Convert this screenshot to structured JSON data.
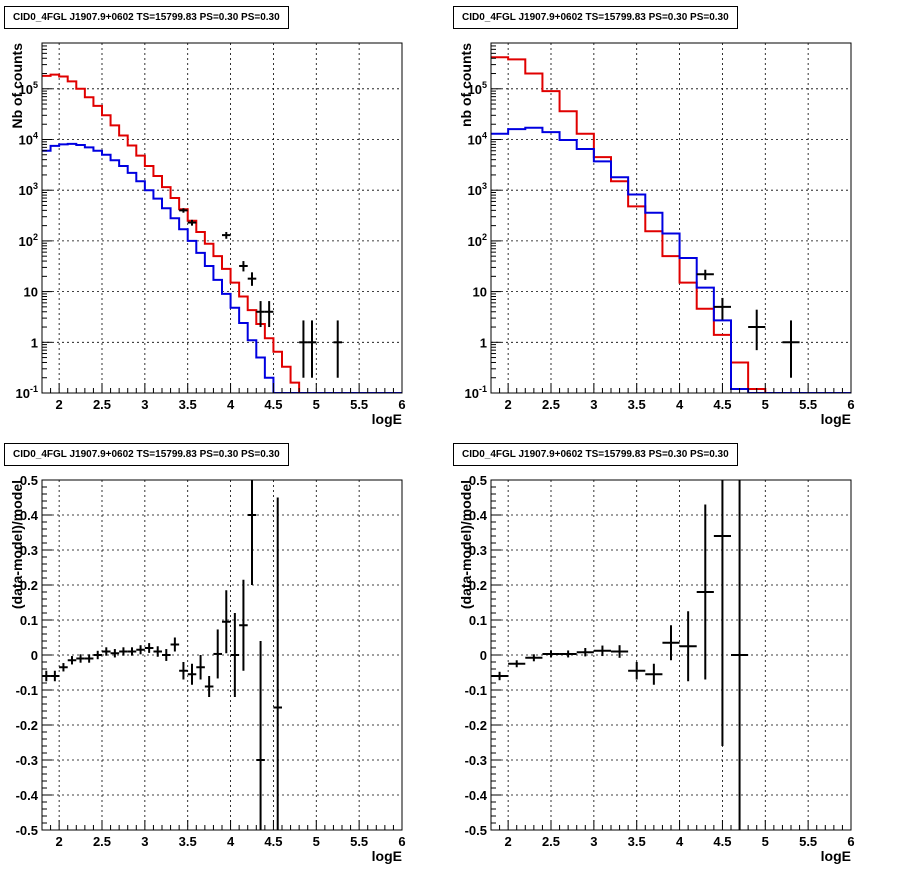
{
  "colors": {
    "model_total": "#e00000",
    "model_component": "#0000e0",
    "data": "#000000",
    "grid": "#000000"
  },
  "chart_data": [
    {
      "type": "line",
      "title": "CID0_4FGL J1907.9+0602 TS=15799.83 PS=0.30 PS=0.30",
      "xlabel": "logE",
      "ylabel": "Nb of counts",
      "xlim": [
        1.8,
        6.0
      ],
      "ylim": [
        0.1,
        800000
      ],
      "yscale": "log",
      "x_ticks": [
        "2",
        "2.5",
        "3",
        "3.5",
        "4",
        "4.5",
        "5",
        "5.5",
        "6"
      ],
      "y_ticks": [
        "10^-1",
        "1",
        "10",
        "10^2",
        "10^3",
        "10^4",
        "10^5"
      ],
      "grid": true,
      "x_edges": [
        1.8,
        1.9,
        2.0,
        2.1,
        2.2,
        2.3,
        2.4,
        2.5,
        2.6,
        2.7,
        2.8,
        2.9,
        3.0,
        3.1,
        3.2,
        3.3,
        3.4,
        3.5,
        3.6,
        3.7,
        3.8,
        3.9,
        4.0,
        4.1,
        4.2,
        4.3,
        4.4,
        4.5,
        4.6,
        4.7,
        4.8,
        4.9,
        5.0,
        5.1,
        5.2,
        5.3,
        5.4,
        5.5,
        5.6,
        5.7,
        5.8,
        5.9,
        6.0
      ],
      "series": [
        {
          "values": [
            180000,
            190000,
            175000,
            140000,
            100000,
            68000,
            46000,
            30000,
            19000,
            12000,
            7600,
            4800,
            3000,
            1900,
            1150,
            700,
            420,
            250,
            150,
            88,
            50,
            28,
            15,
            8,
            4.3,
            2.3,
            1.2,
            0.65,
            0.33,
            0.16,
            0.1,
            0.1,
            0.1,
            0.1,
            0.1,
            0.1,
            0.1,
            0.1,
            0.1,
            0.1,
            0.1,
            0.1
          ],
          "style": "red-step"
        },
        {
          "values": [
            6000,
            7500,
            8000,
            8200,
            7800,
            7000,
            6000,
            5000,
            3900,
            3000,
            2200,
            1500,
            1000,
            680,
            440,
            280,
            170,
            100,
            58,
            32,
            17,
            9,
            4.8,
            2.4,
            1.1,
            0.5,
            0.2,
            0.1,
            0.1,
            0.1,
            0.1,
            0.1,
            0.1,
            0.1,
            0.1,
            0.1,
            0.1,
            0.1,
            0.1,
            0.1,
            0.1,
            0.1
          ],
          "style": "blue-step"
        }
      ],
      "data_points": [
        {
          "x": 3.45,
          "y": 400,
          "ylo": 360,
          "yhi": 440
        },
        {
          "x": 3.55,
          "y": 230,
          "ylo": 200,
          "yhi": 260
        },
        {
          "x": 3.95,
          "y": 130,
          "ylo": 110,
          "yhi": 150
        },
        {
          "x": 4.15,
          "y": 32,
          "ylo": 25,
          "yhi": 40
        },
        {
          "x": 4.25,
          "y": 18,
          "ylo": 13,
          "yhi": 24
        },
        {
          "x": 4.35,
          "y": 4,
          "ylo": 2,
          "yhi": 6.5
        },
        {
          "x": 4.45,
          "y": 4,
          "ylo": 2,
          "yhi": 6.5
        },
        {
          "x": 4.85,
          "y": 1,
          "ylo": 0.2,
          "yhi": 2.7
        },
        {
          "x": 4.95,
          "y": 1,
          "ylo": 0.2,
          "yhi": 2.7
        },
        {
          "x": 5.25,
          "y": 1,
          "ylo": 0.2,
          "yhi": 2.7
        }
      ]
    },
    {
      "type": "line",
      "title": "CID0_4FGL J1907.9+0602 TS=15799.83 PS=0.30 PS=0.30",
      "xlabel": "logE",
      "ylabel": "nb of counts",
      "xlim": [
        1.8,
        6.0
      ],
      "ylim": [
        0.1,
        800000
      ],
      "yscale": "log",
      "x_ticks": [
        "2",
        "2.5",
        "3",
        "3.5",
        "4",
        "4.5",
        "5",
        "5.5",
        "6"
      ],
      "y_ticks": [
        "10^-1",
        "1",
        "10",
        "10^2",
        "10^3",
        "10^4",
        "10^5"
      ],
      "grid": true,
      "x_edges": [
        1.8,
        2.0,
        2.2,
        2.4,
        2.6,
        2.8,
        3.0,
        3.2,
        3.4,
        3.6,
        3.8,
        4.0,
        4.2,
        4.4,
        4.6,
        4.8,
        5.0,
        5.2,
        5.4,
        5.6,
        5.8,
        6.0
      ],
      "series": [
        {
          "values": [
            420000,
            380000,
            200000,
            90000,
            36000,
            13000,
            4500,
            1500,
            480,
            155,
            50,
            15,
            4.6,
            1.4,
            0.4,
            0.12,
            0.1,
            0.1,
            0.1,
            0.1,
            0.1
          ],
          "style": "red-step"
        },
        {
          "values": [
            13000,
            16000,
            17000,
            14000,
            9800,
            6500,
            3700,
            1800,
            820,
            360,
            140,
            46,
            12,
            2.7,
            0.12,
            0.1,
            0.1,
            0.1,
            0.1,
            0.1,
            0.1
          ],
          "style": "blue-step"
        }
      ],
      "data_points": [
        {
          "x": 4.3,
          "y": 22,
          "ylo": 17,
          "yhi": 27
        },
        {
          "x": 4.5,
          "y": 5,
          "ylo": 2.8,
          "yhi": 7.5
        },
        {
          "x": 4.9,
          "y": 2,
          "ylo": 0.7,
          "yhi": 4.4
        },
        {
          "x": 5.3,
          "y": 1,
          "ylo": 0.2,
          "yhi": 2.7
        }
      ]
    },
    {
      "type": "scatter",
      "title": "CID0_4FGL J1907.9+0602 TS=15799.83 PS=0.30 PS=0.30",
      "xlabel": "logE",
      "ylabel": "(data-model)/model",
      "xlim": [
        1.8,
        6.0
      ],
      "ylim": [
        -0.5,
        0.5
      ],
      "x_ticks": [
        "2",
        "2.5",
        "3",
        "3.5",
        "4",
        "4.5",
        "5",
        "5.5",
        "6"
      ],
      "y_ticks": [
        "-0.5",
        "-0.4",
        "-0.3",
        "-0.2",
        "-0.1",
        "0",
        "0.1",
        "0.2",
        "0.3",
        "0.4",
        "0.5"
      ],
      "grid": true,
      "xerr": 0.05,
      "points": [
        {
          "x": 1.85,
          "y": -0.06,
          "err": 0.015
        },
        {
          "x": 1.95,
          "y": -0.06,
          "err": 0.015
        },
        {
          "x": 2.05,
          "y": -0.035,
          "err": 0.012
        },
        {
          "x": 2.15,
          "y": -0.015,
          "err": 0.012
        },
        {
          "x": 2.25,
          "y": -0.01,
          "err": 0.012
        },
        {
          "x": 2.35,
          "y": -0.01,
          "err": 0.012
        },
        {
          "x": 2.45,
          "y": 0.0,
          "err": 0.012
        },
        {
          "x": 2.55,
          "y": 0.01,
          "err": 0.012
        },
        {
          "x": 2.65,
          "y": 0.005,
          "err": 0.012
        },
        {
          "x": 2.75,
          "y": 0.01,
          "err": 0.012
        },
        {
          "x": 2.85,
          "y": 0.01,
          "err": 0.012
        },
        {
          "x": 2.95,
          "y": 0.015,
          "err": 0.013
        },
        {
          "x": 3.05,
          "y": 0.02,
          "err": 0.014
        },
        {
          "x": 3.15,
          "y": 0.01,
          "err": 0.015
        },
        {
          "x": 3.25,
          "y": 0.0,
          "err": 0.017
        },
        {
          "x": 3.35,
          "y": 0.03,
          "err": 0.02
        },
        {
          "x": 3.45,
          "y": -0.045,
          "err": 0.025
        },
        {
          "x": 3.55,
          "y": -0.055,
          "err": 0.03
        },
        {
          "x": 3.65,
          "y": -0.035,
          "err": 0.035
        },
        {
          "x": 3.75,
          "y": -0.09,
          "err": 0.03
        },
        {
          "x": 3.85,
          "y": 0.003,
          "err": 0.07
        },
        {
          "x": 3.95,
          "y": 0.095,
          "err": 0.09
        },
        {
          "x": 4.05,
          "y": 0.0,
          "err": 0.12
        },
        {
          "x": 4.15,
          "y": 0.085,
          "err": 0.13
        },
        {
          "x": 4.25,
          "y": 0.4,
          "err": 0.2
        },
        {
          "x": 4.35,
          "y": -0.3,
          "err": 0.34
        },
        {
          "x": 4.55,
          "y": -0.15,
          "err": 0.6
        }
      ]
    },
    {
      "type": "scatter",
      "title": "CID0_4FGL J1907.9+0602 TS=15799.83 PS=0.30 PS=0.30",
      "xlabel": "logE",
      "ylabel": "(data-model)/model",
      "xlim": [
        1.8,
        6.0
      ],
      "ylim": [
        -0.5,
        0.5
      ],
      "x_ticks": [
        "2",
        "2.5",
        "3",
        "3.5",
        "4",
        "4.5",
        "5",
        "5.5",
        "6"
      ],
      "y_ticks": [
        "-0.5",
        "-0.4",
        "-0.3",
        "-0.2",
        "-0.1",
        "0",
        "0.1",
        "0.2",
        "0.3",
        "0.4",
        "0.5"
      ],
      "grid": true,
      "xerr": 0.1,
      "points": [
        {
          "x": 1.9,
          "y": -0.06,
          "err": 0.012
        },
        {
          "x": 2.1,
          "y": -0.025,
          "err": 0.01
        },
        {
          "x": 2.3,
          "y": -0.008,
          "err": 0.01
        },
        {
          "x": 2.5,
          "y": 0.003,
          "err": 0.01
        },
        {
          "x": 2.7,
          "y": 0.003,
          "err": 0.01
        },
        {
          "x": 2.9,
          "y": 0.008,
          "err": 0.012
        },
        {
          "x": 3.1,
          "y": 0.012,
          "err": 0.015
        },
        {
          "x": 3.3,
          "y": 0.01,
          "err": 0.018
        },
        {
          "x": 3.5,
          "y": -0.045,
          "err": 0.025
        },
        {
          "x": 3.7,
          "y": -0.055,
          "err": 0.03
        },
        {
          "x": 3.9,
          "y": 0.035,
          "err": 0.05
        },
        {
          "x": 4.1,
          "y": 0.025,
          "err": 0.1
        },
        {
          "x": 4.3,
          "y": 0.18,
          "err": 0.25
        },
        {
          "x": 4.5,
          "y": 0.34,
          "err": 0.6
        },
        {
          "x": 4.7,
          "y": 0.0,
          "err": 0.8
        }
      ]
    }
  ]
}
